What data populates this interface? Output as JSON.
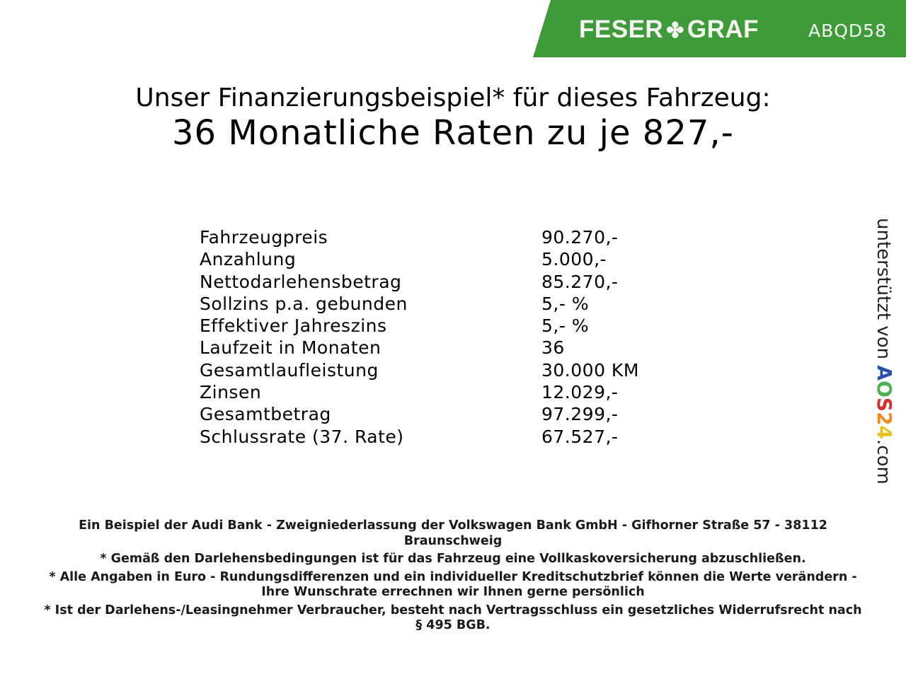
{
  "header": {
    "brand_left": "FESER",
    "brand_right": "GRAF",
    "brand_icon": "clover-icon",
    "code": "ABQD58",
    "banner_color": "#3f9b3a"
  },
  "title": {
    "line1": "Unser Finanzierungsbeispiel* für dieses Fahrzeug:",
    "line2": "36 Monatliche Raten zu je 827,-"
  },
  "rows": [
    {
      "label": "Fahrzeugpreis",
      "value": "90.270,-"
    },
    {
      "label": "Anzahlung",
      "value": "5.000,-"
    },
    {
      "label": "Nettodarlehensbetrag",
      "value": "85.270,-"
    },
    {
      "label": "Sollzins p.a. gebunden",
      "value": "5,- %"
    },
    {
      "label": "Effektiver Jahreszins",
      "value": "5,- %"
    },
    {
      "label": "Laufzeit in Monaten",
      "value": "36"
    },
    {
      "label": "Gesamtlaufleistung",
      "value": "30.000 KM"
    },
    {
      "label": "Zinsen",
      "value": "12.029,-"
    },
    {
      "label": "Gesamtbetrag",
      "value": "97.299,-"
    },
    {
      "label": "Schlussrate (37. Rate)",
      "value": "67.527,-"
    }
  ],
  "footer": [
    "Ein Beispiel der Audi Bank - Zweigniederlassung der Volkswagen Bank GmbH - Gifhorner Straße 57 - 38112 Braunschweig",
    "* Gemäß den Darlehensbedingungen ist für das Fahrzeug eine Vollkaskoversicherung abzuschließen.",
    "* Alle Angaben in Euro - Rundungsdifferenzen und ein individueller Kreditschutzbrief können die Werte verändern - Ihre Wunschrate errechnen wir Ihnen gerne persönlich",
    "* Ist der Darlehens-/Leasingnehmer Verbraucher, besteht nach Vertragsschluss ein gesetzliches Widerrufsrecht nach § 495 BGB."
  ],
  "side": {
    "prefix": "unterstützt von",
    "brand": [
      "A",
      "O",
      "S",
      "2",
      "4"
    ],
    "brand_colors": [
      "#2b4fa8",
      "#4caf50",
      "#d32f2f",
      "#ef8a1c",
      "#e8c21c"
    ],
    "suffix": ".com"
  }
}
